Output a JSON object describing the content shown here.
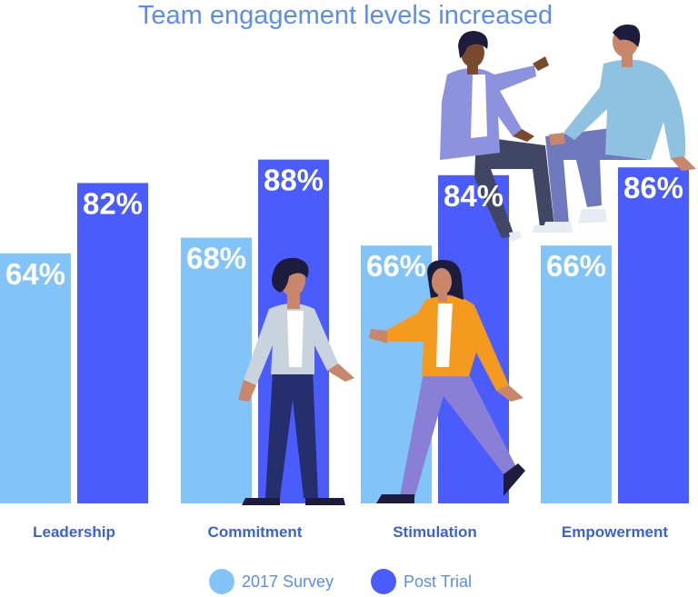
{
  "chart_data": {
    "type": "bar",
    "title": "Team engagement levels increased",
    "categories": [
      "Leadership",
      "Commitment",
      "Stimulation",
      "Empowerment"
    ],
    "series": [
      {
        "name": "2017 Survey",
        "values": [
          64,
          68,
          66,
          66
        ],
        "labels": [
          "64%",
          "68%",
          "66%",
          "66%"
        ]
      },
      {
        "name": "Post Trial",
        "values": [
          82,
          88,
          84,
          86
        ],
        "labels": [
          "82%",
          "88%",
          "84%",
          "86%"
        ]
      }
    ],
    "ylim": [
      0,
      100
    ],
    "grid": false,
    "legend_placement": "bottom"
  },
  "colors": {
    "title": "#5b8def",
    "category_label": "#3a61d8",
    "legend_text": "#5b8def",
    "series": [
      "#82c4f8",
      "#4a5dfc"
    ],
    "figure_skin": "#c8876a",
    "figure_skin_dark": "#7a4a2e",
    "figure_hair": "#1e1c3c",
    "figure_pants_navy": "#262f6e",
    "figure_pants_purple": "#8a7fd6",
    "figure_jacket_grey": "#c9d3de",
    "figure_jacket_orange": "#f39a1f",
    "figure_sweater_lavender": "#8d92de",
    "figure_sweater_lightblue": "#8fc1e0"
  },
  "illustration": {
    "name": "people-illustration",
    "figures": [
      "standing-man",
      "walking-woman",
      "seated-man",
      "seated-person"
    ]
  }
}
